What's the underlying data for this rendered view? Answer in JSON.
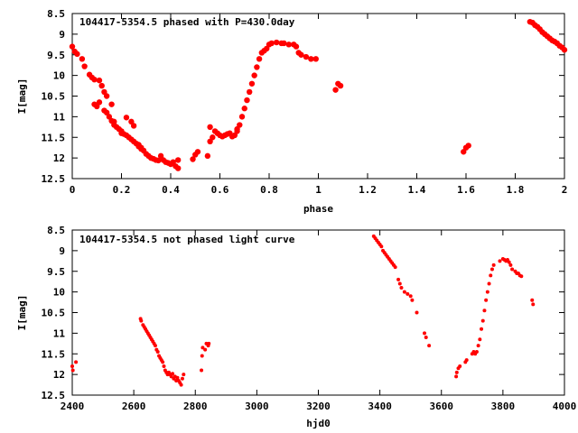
{
  "colors": {
    "points": "#ff0000",
    "axis": "#000000",
    "background": "#ffffff"
  },
  "chart_data": [
    {
      "type": "scatter",
      "title": "104417-5354.5 phased with P=430.0day",
      "xlabel": "phase",
      "ylabel": "I[mag]",
      "xlim": [
        0,
        2
      ],
      "ylim": [
        8.5,
        12.5
      ],
      "y_inverted": true,
      "grid": false,
      "x_ticks": [
        "0",
        "0.2",
        "0.4",
        "0.6",
        "0.8",
        "1",
        "1.2",
        "1.4",
        "1.6",
        "1.8",
        "2"
      ],
      "y_ticks": [
        "8.5",
        "9",
        "9.5",
        "10",
        "10.5",
        "11",
        "11.5",
        "12",
        "12.5"
      ],
      "series": [
        {
          "x": [
            0.0,
            0.01,
            0.02,
            0.04,
            0.05,
            0.07,
            0.08,
            0.09,
            0.09,
            0.1,
            0.11,
            0.11,
            0.12,
            0.13,
            0.13,
            0.14,
            0.14,
            0.15,
            0.16,
            0.16,
            0.17,
            0.17,
            0.18,
            0.19,
            0.2,
            0.2,
            0.21,
            0.22,
            0.22,
            0.23,
            0.24,
            0.24,
            0.25,
            0.25,
            0.26,
            0.27,
            0.27,
            0.28,
            0.28,
            0.29,
            0.3,
            0.31,
            0.32,
            0.33,
            0.34,
            0.35,
            0.36,
            0.37,
            0.38,
            0.39,
            0.4,
            0.41,
            0.42,
            0.43,
            0.43,
            0.49,
            0.5,
            0.51,
            0.55,
            0.56,
            0.56,
            0.57,
            0.58,
            0.59,
            0.6,
            0.61,
            0.62,
            0.63,
            0.64,
            0.65,
            0.66,
            0.67,
            0.67,
            0.68,
            0.69,
            0.7,
            0.71,
            0.72,
            0.73,
            0.74,
            0.75,
            0.76,
            0.77,
            0.78,
            0.79,
            0.8,
            0.81,
            0.83,
            0.85,
            0.86,
            0.88,
            0.9,
            0.91,
            0.92,
            0.93,
            0.95,
            0.97,
            0.99,
            1.07,
            1.08,
            1.09,
            1.59,
            1.6,
            1.61,
            1.86,
            1.87,
            1.88,
            1.89,
            1.9,
            1.91,
            1.92,
            1.93,
            1.94,
            1.95,
            1.96,
            1.97,
            1.98,
            1.99,
            2.0
          ],
          "y": [
            9.3,
            9.42,
            9.48,
            9.6,
            9.78,
            9.98,
            10.05,
            10.1,
            10.7,
            10.75,
            10.12,
            10.65,
            10.25,
            10.85,
            10.4,
            10.9,
            10.5,
            11.0,
            10.7,
            11.1,
            11.12,
            11.2,
            11.25,
            11.3,
            11.35,
            11.4,
            11.42,
            11.45,
            11.02,
            11.5,
            11.55,
            11.12,
            11.6,
            11.22,
            11.65,
            11.68,
            11.72,
            11.75,
            11.78,
            11.82,
            11.9,
            11.95,
            12.0,
            12.02,
            12.05,
            12.06,
            11.95,
            12.05,
            12.1,
            12.12,
            12.15,
            12.1,
            12.2,
            12.05,
            12.25,
            12.03,
            11.92,
            11.85,
            11.95,
            11.6,
            11.25,
            11.5,
            11.35,
            11.4,
            11.45,
            11.48,
            11.45,
            11.42,
            11.4,
            11.48,
            11.45,
            11.35,
            11.3,
            11.2,
            11.0,
            10.8,
            10.6,
            10.4,
            10.2,
            10.0,
            9.8,
            9.6,
            9.45,
            9.4,
            9.35,
            9.25,
            9.22,
            9.2,
            9.22,
            9.22,
            9.25,
            9.25,
            9.3,
            9.45,
            9.5,
            9.55,
            9.6,
            9.6,
            10.35,
            10.2,
            10.25,
            11.85,
            11.75,
            11.7,
            8.7,
            8.72,
            8.78,
            8.82,
            8.88,
            8.95,
            9.0,
            9.05,
            9.1,
            9.15,
            9.18,
            9.22,
            9.28,
            9.32,
            9.38
          ]
        }
      ]
    },
    {
      "type": "scatter",
      "title": "104417-5354.5 not phased light curve",
      "xlabel": "hjd0",
      "ylabel": "I[mag]",
      "xlim": [
        2400,
        4000
      ],
      "ylim": [
        8.5,
        12.5
      ],
      "y_inverted": true,
      "grid": false,
      "x_ticks": [
        "2400",
        "2600",
        "2800",
        "3000",
        "3200",
        "3400",
        "3600",
        "3800",
        "4000"
      ],
      "y_ticks": [
        "8.5",
        "9",
        "9.5",
        "10",
        "10.5",
        "11",
        "11.5",
        "12",
        "12.5"
      ],
      "series": [
        {
          "x": [
            2400,
            2402,
            2412,
            2622,
            2624,
            2630,
            2634,
            2638,
            2642,
            2646,
            2650,
            2654,
            2658,
            2662,
            2666,
            2670,
            2674,
            2678,
            2682,
            2686,
            2690,
            2694,
            2698,
            2702,
            2706,
            2710,
            2714,
            2718,
            2722,
            2726,
            2730,
            2734,
            2738,
            2742,
            2746,
            2750,
            2754,
            2758,
            2762,
            2820,
            2822,
            2824,
            2832,
            2836,
            2842,
            2844,
            3380,
            3385,
            3390,
            3395,
            3400,
            3405,
            3410,
            3415,
            3420,
            3425,
            3430,
            3435,
            3440,
            3445,
            3450,
            3460,
            3465,
            3470,
            3480,
            3490,
            3500,
            3505,
            3520,
            3545,
            3550,
            3560,
            3648,
            3650,
            3655,
            3660,
            3678,
            3682,
            3700,
            3705,
            3710,
            3715,
            3720,
            3725,
            3730,
            3735,
            3740,
            3745,
            3750,
            3755,
            3760,
            3765,
            3770,
            3790,
            3800,
            3805,
            3810,
            3815,
            3820,
            3825,
            3830,
            3840,
            3845,
            3850,
            3855,
            3860,
            3895,
            3898
          ],
          "y": [
            11.8,
            11.9,
            11.7,
            10.65,
            10.7,
            10.8,
            10.85,
            10.9,
            10.95,
            11.0,
            11.05,
            11.1,
            11.15,
            11.2,
            11.25,
            11.3,
            11.4,
            11.45,
            11.55,
            11.6,
            11.65,
            11.7,
            11.8,
            11.9,
            11.95,
            12.0,
            11.95,
            12.0,
            12.05,
            11.98,
            12.1,
            12.05,
            12.15,
            12.08,
            12.15,
            12.2,
            12.25,
            12.1,
            12.0,
            11.9,
            11.55,
            11.35,
            11.4,
            11.25,
            11.3,
            11.25,
            8.65,
            8.7,
            8.75,
            8.8,
            8.85,
            8.9,
            9.0,
            9.05,
            9.1,
            9.15,
            9.2,
            9.25,
            9.3,
            9.35,
            9.4,
            9.7,
            9.8,
            9.9,
            10.0,
            10.05,
            10.1,
            10.2,
            10.5,
            11.0,
            11.1,
            11.3,
            12.05,
            11.95,
            11.85,
            11.8,
            11.7,
            11.65,
            11.5,
            11.45,
            11.5,
            11.45,
            11.3,
            11.15,
            10.9,
            10.7,
            10.45,
            10.2,
            10.0,
            9.8,
            9.6,
            9.45,
            9.35,
            9.25,
            9.2,
            9.22,
            9.25,
            9.22,
            9.28,
            9.35,
            9.45,
            9.5,
            9.55,
            9.55,
            9.6,
            9.62,
            10.2,
            10.3
          ]
        }
      ]
    }
  ]
}
